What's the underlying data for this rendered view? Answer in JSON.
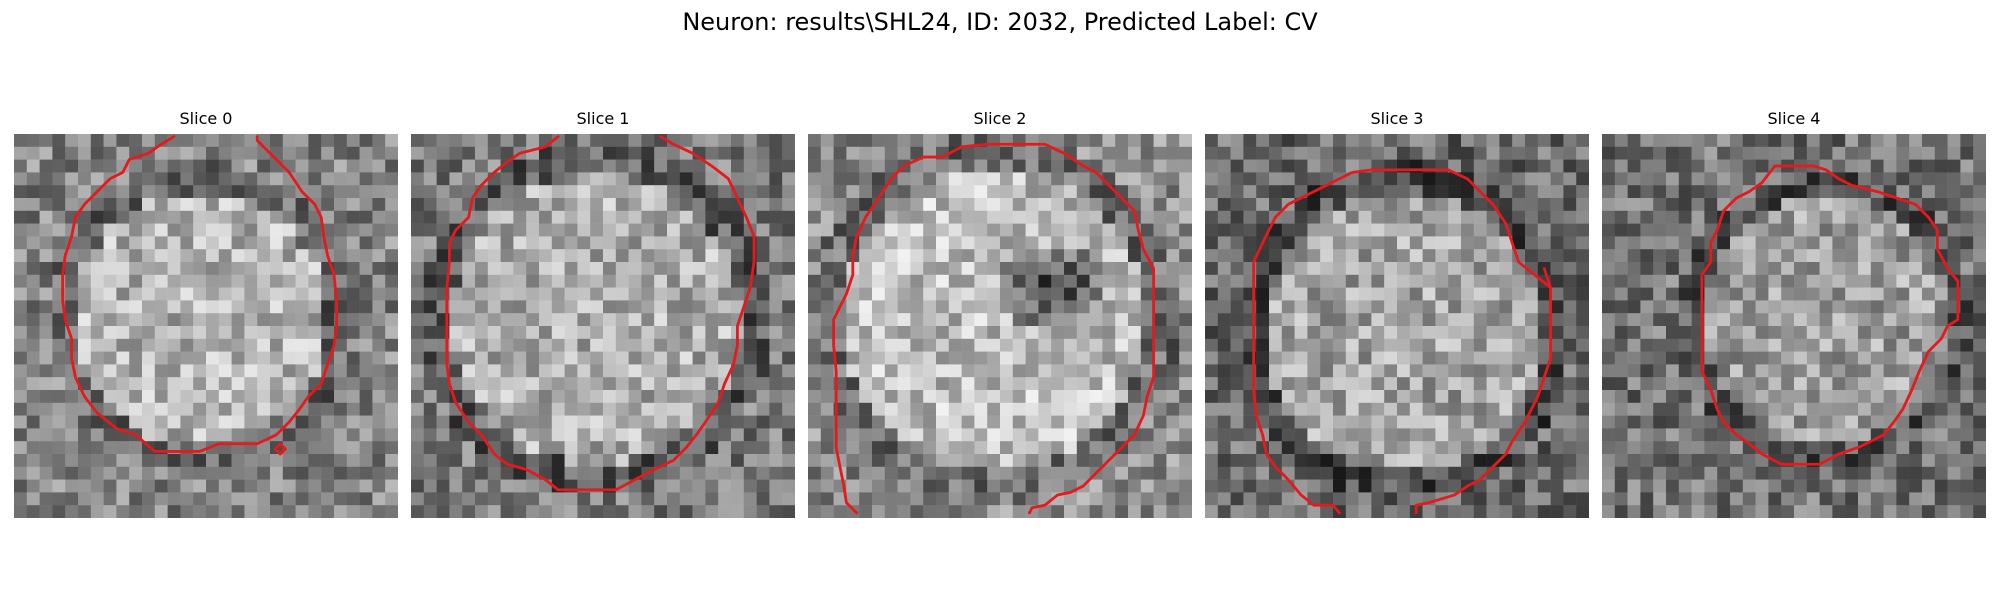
{
  "figure": {
    "title": "Neuron: results\\SHL24, ID: 2032, Predicted Label: CV"
  },
  "contour_color": "#e41a1c",
  "panels": [
    {
      "title": "Slice 0"
    },
    {
      "title": "Slice 1"
    },
    {
      "title": "Slice 2"
    },
    {
      "title": "Slice 3"
    },
    {
      "title": "Slice 4"
    }
  ]
}
